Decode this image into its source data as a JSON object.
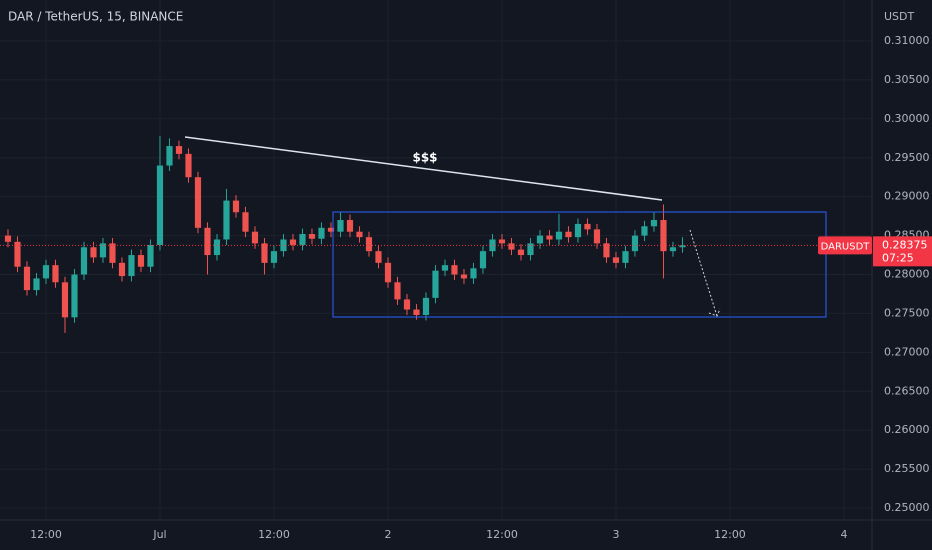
{
  "chart_data": {
    "type": "candlestick",
    "title": "DAR / TetherUS, 15, BINANCE",
    "y_axis_label": "USDT",
    "annotation": "$$$",
    "up_color": "#26a69a",
    "down_color": "#ef5350",
    "grid": true,
    "price_label": {
      "symbol": "DARUSDT",
      "price": 0.28375,
      "countdown": "07:25",
      "color": "#f23645"
    },
    "x": [
      -16,
      -15,
      -14,
      -13,
      -12,
      -11,
      -10,
      -9,
      -8,
      -7,
      -6,
      -5,
      -4,
      -3,
      -2,
      -1,
      0,
      1,
      2,
      3,
      4,
      5,
      6,
      7,
      8,
      9,
      10,
      11,
      12,
      13,
      14,
      15,
      16,
      17,
      18,
      19,
      20,
      21,
      22,
      23,
      24,
      25,
      26,
      27,
      28,
      29,
      30,
      31,
      32,
      33,
      34,
      35,
      36,
      37,
      38,
      39,
      40,
      41,
      42,
      43,
      44,
      45,
      46,
      47,
      48,
      49,
      50,
      51,
      52,
      53,
      54,
      55
    ],
    "open": [
      0.285,
      0.2842,
      0.281,
      0.278,
      0.2795,
      0.2812,
      0.279,
      0.2745,
      0.28,
      0.2835,
      0.2822,
      0.284,
      0.2815,
      0.2798,
      0.2825,
      0.281,
      0.2838,
      0.294,
      0.2965,
      0.2955,
      0.2925,
      0.286,
      0.2825,
      0.2845,
      0.2895,
      0.288,
      0.2855,
      0.284,
      0.2815,
      0.283,
      0.2845,
      0.2838,
      0.2852,
      0.2846,
      0.286,
      0.2855,
      0.287,
      0.2855,
      0.2848,
      0.283,
      0.2815,
      0.279,
      0.2768,
      0.2755,
      0.2748,
      0.277,
      0.2805,
      0.2812,
      0.28,
      0.2795,
      0.2808,
      0.283,
      0.2845,
      0.284,
      0.2832,
      0.2825,
      0.284,
      0.285,
      0.2845,
      0.2855,
      0.2848,
      0.2865,
      0.2858,
      0.284,
      0.2822,
      0.2815,
      0.283,
      0.285,
      0.2862,
      0.287,
      0.283,
      0.2835
    ],
    "high": [
      0.2858,
      0.2849,
      0.2817,
      0.2802,
      0.2819,
      0.2819,
      0.2797,
      0.2807,
      0.2842,
      0.2842,
      0.2847,
      0.2847,
      0.2822,
      0.2832,
      0.2832,
      0.2845,
      0.2978,
      0.2975,
      0.2972,
      0.2962,
      0.2932,
      0.2867,
      0.2852,
      0.291,
      0.2902,
      0.2887,
      0.2862,
      0.2847,
      0.2837,
      0.2852,
      0.2852,
      0.2859,
      0.2859,
      0.2867,
      0.2867,
      0.288,
      0.2877,
      0.2862,
      0.2855,
      0.2837,
      0.2822,
      0.2797,
      0.2775,
      0.2762,
      0.2777,
      0.2812,
      0.2819,
      0.2819,
      0.2807,
      0.2815,
      0.2837,
      0.2852,
      0.2852,
      0.2847,
      0.2839,
      0.2847,
      0.2857,
      0.2857,
      0.2878,
      0.2862,
      0.2872,
      0.2872,
      0.2865,
      0.2847,
      0.2829,
      0.2837,
      0.2857,
      0.2869,
      0.288,
      0.289,
      0.2842,
      0.2848
    ],
    "low": [
      0.2835,
      0.2803,
      0.2773,
      0.2773,
      0.2788,
      0.2783,
      0.2725,
      0.2738,
      0.2793,
      0.2815,
      0.2815,
      0.2808,
      0.2791,
      0.2791,
      0.2803,
      0.2803,
      0.2831,
      0.2933,
      0.2948,
      0.2918,
      0.2853,
      0.28,
      0.2818,
      0.2838,
      0.2873,
      0.2848,
      0.2833,
      0.28,
      0.2808,
      0.2823,
      0.2831,
      0.2831,
      0.2839,
      0.2839,
      0.2848,
      0.2848,
      0.2848,
      0.2841,
      0.2823,
      0.2808,
      0.2783,
      0.2761,
      0.2748,
      0.2742,
      0.2741,
      0.2763,
      0.2798,
      0.2793,
      0.2788,
      0.2788,
      0.2801,
      0.2823,
      0.2833,
      0.2825,
      0.2818,
      0.2818,
      0.2833,
      0.2838,
      0.2838,
      0.2841,
      0.2841,
      0.2851,
      0.2833,
      0.2815,
      0.2808,
      0.2808,
      0.2823,
      0.2843,
      0.2855,
      0.2795,
      0.2823,
      0.2828
    ],
    "close": [
      0.2842,
      0.281,
      0.278,
      0.2795,
      0.2812,
      0.279,
      0.2745,
      0.28,
      0.2835,
      0.2822,
      0.284,
      0.2815,
      0.2798,
      0.2825,
      0.281,
      0.2838,
      0.294,
      0.2965,
      0.2955,
      0.2925,
      0.286,
      0.2825,
      0.2845,
      0.2895,
      0.288,
      0.2855,
      0.284,
      0.2815,
      0.283,
      0.2845,
      0.2838,
      0.2852,
      0.2846,
      0.286,
      0.2855,
      0.287,
      0.2855,
      0.2848,
      0.283,
      0.2815,
      0.279,
      0.2768,
      0.2755,
      0.2748,
      0.277,
      0.2805,
      0.2812,
      0.28,
      0.2795,
      0.2808,
      0.283,
      0.2845,
      0.284,
      0.2832,
      0.2825,
      0.284,
      0.285,
      0.2845,
      0.2855,
      0.2848,
      0.2865,
      0.2858,
      0.284,
      0.2822,
      0.2815,
      0.283,
      0.285,
      0.2862,
      0.287,
      0.283,
      0.2835,
      0.28375
    ],
    "xlim": [
      -16.84,
      74.95
    ],
    "xticks": [
      {
        "value": -12,
        "label": "12:00"
      },
      {
        "value": 0,
        "label": "Jul"
      },
      {
        "value": 12,
        "label": "12:00"
      },
      {
        "value": 24,
        "label": "2"
      },
      {
        "value": 36,
        "label": "12:00"
      },
      {
        "value": 48,
        "label": "3"
      },
      {
        "value": 60,
        "label": "12:00"
      },
      {
        "value": 72,
        "label": "4"
      }
    ],
    "ylim": [
      0.24846,
      0.31527
    ],
    "yticks": [
      {
        "value": 0.25,
        "label": "0.25000"
      },
      {
        "value": 0.255,
        "label": "0.25500"
      },
      {
        "value": 0.26,
        "label": "0.26000"
      },
      {
        "value": 0.265,
        "label": "0.26500"
      },
      {
        "value": 0.27,
        "label": "0.27000"
      },
      {
        "value": 0.275,
        "label": "0.27500"
      },
      {
        "value": 0.28,
        "label": "0.28000"
      },
      {
        "value": 0.285,
        "label": "0.28500"
      },
      {
        "value": 0.29,
        "label": "0.29000"
      },
      {
        "value": 0.295,
        "label": "0.29500"
      },
      {
        "value": 0.3,
        "label": "0.30000"
      },
      {
        "value": 0.305,
        "label": "0.30500"
      },
      {
        "value": 0.31,
        "label": "0.31000"
      }
    ]
  }
}
